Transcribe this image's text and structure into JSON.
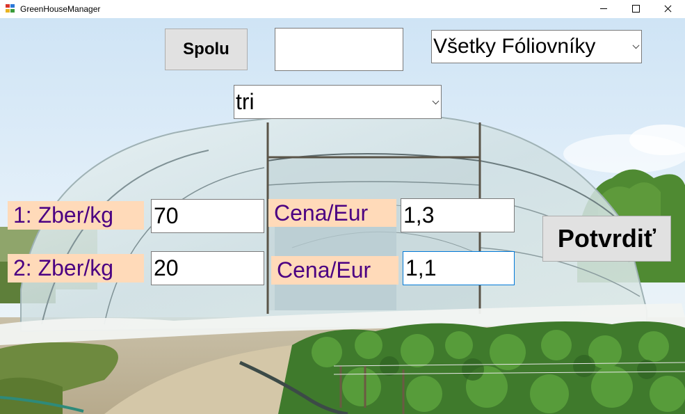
{
  "window": {
    "title": "GreenHouseManager"
  },
  "top_row": {
    "spolu_button": "Spolu",
    "total_value": "",
    "greenhouse_select": {
      "selected": "Všetky Fóliovníky"
    }
  },
  "variety_select": {
    "selected": "tri"
  },
  "row1": {
    "harvest_label": "1: Zber/kg",
    "harvest_value": "70",
    "price_label": "Cena/Eur",
    "price_value": "1,3"
  },
  "row2": {
    "harvest_label": "2: Zber/kg",
    "harvest_value": "20",
    "price_label": "Cena/Eur",
    "price_value": "1,1"
  },
  "confirm_button": "Potvrdiť",
  "colors": {
    "label_background": "#ffdab9",
    "label_text": "#4b0082",
    "button_face": "#e1e1e1",
    "focus_border": "#0078d7"
  },
  "icons": {
    "app": "application-icon",
    "minimize": "minimize-icon",
    "maximize": "maximize-icon",
    "close": "close-icon"
  }
}
